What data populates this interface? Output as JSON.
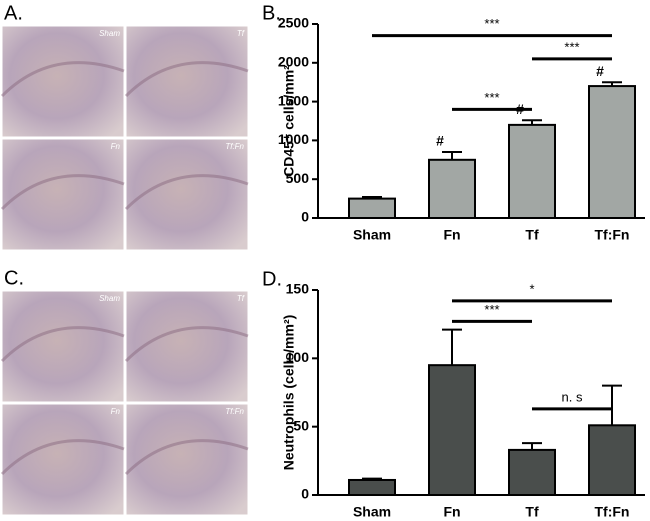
{
  "panels": [
    {
      "label": "A.",
      "images": [
        "Sham",
        "Tf",
        "Fn",
        "Tf:Fn"
      ]
    },
    {
      "label": "C.",
      "images": [
        "Sham",
        "Tf",
        "Fn",
        "Tf:Fn"
      ]
    }
  ],
  "chart_data": [
    {
      "type": "bar",
      "panel": "B.",
      "y_label": "CD45⁺ cells/mm²",
      "categories": [
        "Sham",
        "Fn",
        "Tf",
        "Tf:Fn"
      ],
      "values": [
        250,
        750,
        1200,
        1700
      ],
      "errors": [
        20,
        100,
        60,
        50
      ],
      "color": "#a2a7a4",
      "ylim": [
        0,
        2500
      ],
      "yticks": [
        0,
        500,
        1000,
        1500,
        2000,
        2500
      ],
      "markers": [
        {
          "text": "#",
          "category": "Fn"
        },
        {
          "text": "#",
          "category": "Tf"
        },
        {
          "text": "#",
          "category": "Tf:Fn"
        }
      ],
      "brackets": [
        {
          "text": "***",
          "from": "Fn",
          "to": "Tf",
          "y": 1400
        },
        {
          "text": "***",
          "from": "Tf",
          "to": "Tf:Fn",
          "y": 2050
        },
        {
          "text": "***",
          "from": "Sham",
          "to": "Tf:Fn",
          "y": 2350
        }
      ]
    },
    {
      "type": "bar",
      "panel": "D.",
      "y_label": "Neutrophils (cells/mm²)",
      "categories": [
        "Sham",
        "Fn",
        "Tf",
        "Tf:Fn"
      ],
      "values": [
        11,
        95,
        33,
        51
      ],
      "errors": [
        1,
        26,
        5,
        29
      ],
      "color": "#4a4e4c",
      "ylim": [
        0,
        150
      ],
      "yticks": [
        0,
        50,
        100,
        150
      ],
      "brackets": [
        {
          "text": "***",
          "from": "Fn",
          "to": "Tf",
          "y": 127
        },
        {
          "text": "*",
          "from": "Fn",
          "to": "Tf:Fn",
          "y": 142
        },
        {
          "text": "n. s",
          "from": "Tf",
          "to": "Tf:Fn",
          "y": 63
        }
      ]
    }
  ]
}
